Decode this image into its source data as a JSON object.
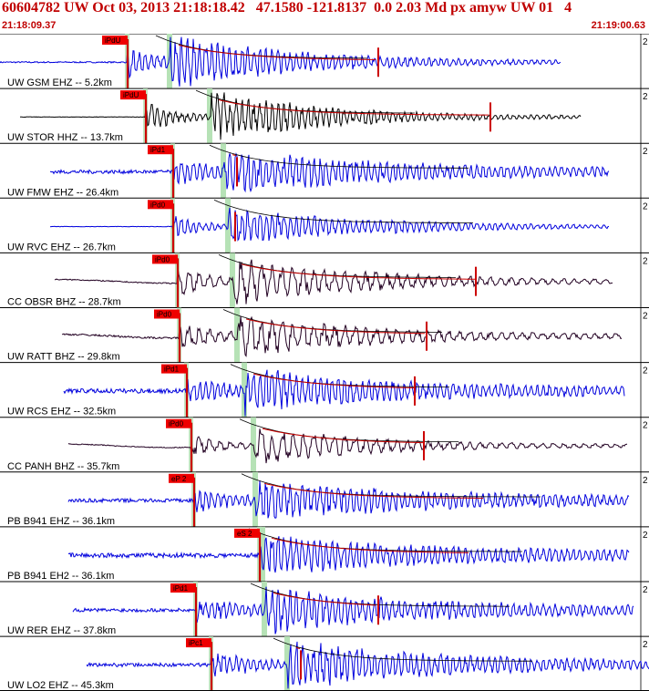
{
  "header": {
    "title": "60604782 UW Oct 03, 2013 21:18:18.42   47.1580 -121.8137  0.0 2.03 Md px amyw UW 01   4",
    "time_start": "21:18:09.37",
    "time_end": "21:19:00.63"
  },
  "colors": {
    "title": "#c00000",
    "trace_blue": "#0000dd",
    "trace_black": "#000000",
    "trace_dark": "#220022",
    "pick_label_bg": "#ee0000",
    "pick_bar": "#cc0000",
    "s_wave_band": "#b6e2b6",
    "coda_fit": "#cc0000",
    "envelope": "#000000"
  },
  "scale_mark": "2",
  "traces": [
    {
      "label": "UW GSM EHZ -- 5.2km",
      "pick": "iPdU",
      "color": "blue"
    },
    {
      "label": "UW STOR HHZ -- 13.7km",
      "pick": "iPdU",
      "color": "black"
    },
    {
      "label": "UW FMW EHZ -- 26.4km",
      "pick": "iPd1",
      "color": "blue"
    },
    {
      "label": "UW RVC EHZ -- 26.7km",
      "pick": "iPd0",
      "color": "blue"
    },
    {
      "label": "CC OBSR BHZ -- 28.7km",
      "pick": "iPd0",
      "color": "dark"
    },
    {
      "label": "UW RATT BHZ -- 29.8km",
      "pick": "iPd0",
      "color": "dark"
    },
    {
      "label": "UW RCS EHZ -- 32.5km",
      "pick": "iPd1",
      "color": "blue"
    },
    {
      "label": "CC PANH BHZ -- 35.7km",
      "pick": "iPd0",
      "color": "dark"
    },
    {
      "label": "PB B941 EHZ -- 36.1km",
      "pick": "eP 2",
      "color": "blue"
    },
    {
      "label": "PB B941 EH2 -- 36.1km",
      "pick": "eS 2",
      "color": "blue"
    },
    {
      "label": "UW RER EHZ -- 37.8km",
      "pick": "iPd1",
      "color": "blue"
    },
    {
      "label": "UW LO2 EHZ -- 45.3km",
      "pick": "iPc1",
      "color": "blue"
    }
  ]
}
